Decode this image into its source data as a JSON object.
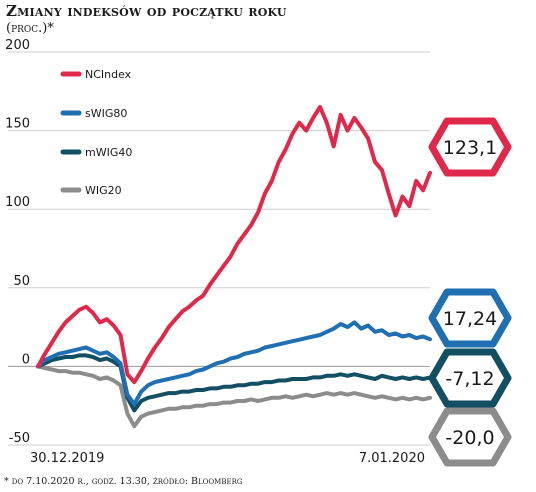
{
  "header": {
    "title": "Zmiany indeksów od początku roku",
    "subtitle": "(proc.)*"
  },
  "footnote": "* do 7.10.2020 r., godz. 13.30, źródło: Bloomberg",
  "chart_data": {
    "type": "line",
    "title": "Zmiany indeksów od początku roku",
    "subtitle": "(proc.)*",
    "xlabel": "",
    "ylabel": "",
    "x_tick_labels": [
      "30.12.2019",
      "7.01.2020"
    ],
    "y_ticks": [
      -50,
      0,
      50,
      100,
      150,
      200
    ],
    "ylim": [
      -50,
      200
    ],
    "grid": true,
    "legend_position": "top-left",
    "colors": {
      "NCIndex": "#e0284a",
      "sWIG80": "#1f6fb2",
      "mWIG40": "#134f63",
      "WIG20": "#8c8c8c"
    },
    "series": [
      {
        "name": "NCIndex",
        "values": [
          0,
          8,
          15,
          22,
          28,
          32,
          36,
          38,
          34,
          28,
          30,
          26,
          20,
          -5,
          -10,
          -3,
          5,
          12,
          18,
          25,
          30,
          35,
          38,
          42,
          45,
          52,
          58,
          64,
          70,
          78,
          84,
          90,
          98,
          110,
          118,
          130,
          138,
          148,
          155,
          150,
          158,
          165,
          155,
          140,
          160,
          150,
          158,
          152,
          145,
          130,
          125,
          110,
          96,
          108,
          102,
          118,
          112,
          123.1
        ],
        "end_label": "123,1"
      },
      {
        "name": "sWIG80",
        "values": [
          0,
          4,
          6,
          8,
          9,
          10,
          11,
          12,
          10,
          8,
          9,
          6,
          2,
          -18,
          -24,
          -16,
          -12,
          -10,
          -9,
          -8,
          -7,
          -6,
          -5,
          -3,
          -2,
          0,
          2,
          3,
          5,
          6,
          8,
          9,
          10,
          12,
          13,
          14,
          15,
          16,
          17,
          18,
          19,
          20,
          22,
          24,
          27,
          25,
          28,
          24,
          26,
          22,
          23,
          20,
          21,
          19,
          20,
          18,
          19,
          17.24
        ],
        "end_label": "17,24"
      },
      {
        "name": "mWIG40",
        "values": [
          0,
          2,
          4,
          5,
          6,
          6,
          7,
          7,
          6,
          4,
          5,
          3,
          0,
          -20,
          -28,
          -22,
          -20,
          -19,
          -18,
          -17,
          -17,
          -16,
          -16,
          -15,
          -15,
          -14,
          -14,
          -13,
          -13,
          -12,
          -12,
          -11,
          -11,
          -10,
          -10,
          -9,
          -9,
          -8,
          -8,
          -8,
          -7,
          -7,
          -6,
          -6,
          -5,
          -6,
          -5,
          -6,
          -7,
          -8,
          -6,
          -7,
          -8,
          -7,
          -8,
          -7,
          -8,
          -7.12
        ],
        "end_label": "-7,12"
      },
      {
        "name": "WIG20",
        "values": [
          0,
          -1,
          -2,
          -3,
          -3,
          -4,
          -4,
          -5,
          -6,
          -8,
          -7,
          -9,
          -12,
          -30,
          -38,
          -32,
          -30,
          -29,
          -28,
          -27,
          -27,
          -26,
          -26,
          -25,
          -25,
          -24,
          -24,
          -23,
          -23,
          -22,
          -22,
          -21,
          -22,
          -21,
          -20,
          -20,
          -19,
          -20,
          -19,
          -18,
          -19,
          -18,
          -17,
          -18,
          -17,
          -18,
          -17,
          -18,
          -19,
          -20,
          -19,
          -20,
          -21,
          -20,
          -21,
          -20,
          -21,
          -20.0
        ],
        "end_label": "-20,0"
      }
    ]
  }
}
